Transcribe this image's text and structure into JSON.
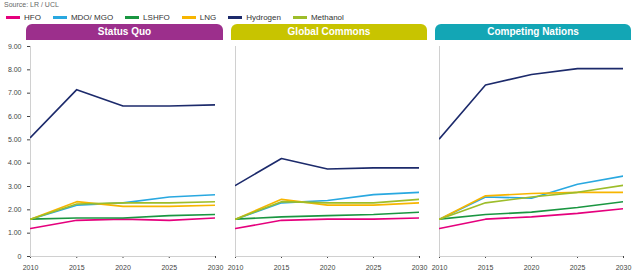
{
  "chart_data": [
    {
      "type": "line",
      "title": "Status Quo",
      "color": "#9c2f8c",
      "source": "Source: LR / UCL",
      "legend": "top",
      "x": [
        2010,
        2015,
        2020,
        2025,
        2030
      ],
      "xlim": [
        2010,
        2030
      ],
      "xticks": [
        2010,
        2015,
        2020,
        2025,
        2030
      ],
      "ylim": [
        0,
        9
      ],
      "yticks": [
        0,
        {
          "value": 1,
          "label": "1.00"
        },
        {
          "value": 2,
          "label": "2.00"
        },
        {
          "value": 3,
          "label": "3.00"
        },
        {
          "value": 4,
          "label": "4.00"
        },
        {
          "value": 5,
          "label": "5.00"
        },
        {
          "value": 6,
          "label": "6.00"
        },
        {
          "value": 7,
          "label": "7.00"
        },
        {
          "value": 8,
          "label": "8.00"
        },
        {
          "value": 9,
          "label": "9.00"
        }
      ],
      "grid": false,
      "series": [
        {
          "name": "HFO",
          "color": "#e5007d",
          "values": [
            1.2,
            1.55,
            1.6,
            1.55,
            1.65
          ]
        },
        {
          "name": "MDO/ MGO",
          "color": "#29a8e0",
          "values": [
            1.6,
            2.2,
            2.3,
            2.55,
            2.65
          ]
        },
        {
          "name": "LSHFO",
          "color": "#1a9641",
          "values": [
            1.6,
            1.65,
            1.65,
            1.75,
            1.8
          ]
        },
        {
          "name": "LNG",
          "color": "#f7b500",
          "values": [
            1.6,
            2.35,
            2.15,
            2.15,
            2.2
          ]
        },
        {
          "name": "Hydrogen",
          "color": "#1c2a6b",
          "values": [
            5.1,
            7.15,
            6.45,
            6.45,
            6.5
          ]
        },
        {
          "name": "Methanol",
          "color": "#9dbd2a",
          "values": [
            1.6,
            2.25,
            2.3,
            2.3,
            2.35
          ]
        }
      ]
    },
    {
      "type": "line",
      "title": "Global Commons",
      "color": "#c8c400",
      "tick_labels": "x",
      "x": [
        2010,
        2015,
        2020,
        2025,
        2030
      ],
      "xlim": [
        2010,
        2030
      ],
      "xticks": [
        2010,
        2015,
        2020,
        2025,
        2030
      ],
      "ylim": [
        0,
        9
      ],
      "yticks": [
        0,
        1,
        2,
        3,
        4,
        5,
        6,
        7,
        8,
        9
      ],
      "grid": false,
      "series": [
        {
          "name": "HFO",
          "color": "#e5007d",
          "values": [
            1.2,
            1.55,
            1.6,
            1.6,
            1.65
          ]
        },
        {
          "name": "MDO/ MGO",
          "color": "#29a8e0",
          "values": [
            1.6,
            2.3,
            2.4,
            2.65,
            2.75
          ]
        },
        {
          "name": "LSHFO",
          "color": "#1a9641",
          "values": [
            1.6,
            1.7,
            1.75,
            1.8,
            1.9
          ]
        },
        {
          "name": "LNG",
          "color": "#f7b500",
          "values": [
            1.6,
            2.45,
            2.2,
            2.2,
            2.3
          ]
        },
        {
          "name": "Hydrogen",
          "color": "#1c2a6b",
          "values": [
            3.05,
            4.2,
            3.75,
            3.8,
            3.8
          ]
        },
        {
          "name": "Methanol",
          "color": "#9dbd2a",
          "values": [
            1.6,
            2.35,
            2.3,
            2.3,
            2.45
          ]
        }
      ]
    },
    {
      "type": "line",
      "title": "Competing Nations",
      "color": "#13a6b5",
      "tick_labels": "x",
      "x": [
        2010,
        2015,
        2020,
        2025,
        2030
      ],
      "xlim": [
        2010,
        2030
      ],
      "xticks": [
        2010,
        2015,
        2020,
        2025,
        2030
      ],
      "ylim": [
        0,
        9
      ],
      "yticks": [
        0,
        1,
        2,
        3,
        4,
        5,
        6,
        7,
        8,
        9
      ],
      "grid": false,
      "series": [
        {
          "name": "HFO",
          "color": "#e5007d",
          "values": [
            1.2,
            1.6,
            1.7,
            1.85,
            2.05
          ]
        },
        {
          "name": "MDO/ MGO",
          "color": "#29a8e0",
          "values": [
            1.6,
            2.55,
            2.5,
            3.1,
            3.45
          ]
        },
        {
          "name": "LSHFO",
          "color": "#1a9641",
          "values": [
            1.6,
            1.8,
            1.9,
            2.1,
            2.35
          ]
        },
        {
          "name": "LNG",
          "color": "#f7b500",
          "values": [
            1.6,
            2.6,
            2.7,
            2.75,
            2.75
          ]
        },
        {
          "name": "Hydrogen",
          "color": "#1c2a6b",
          "values": [
            5.05,
            7.35,
            7.8,
            8.05,
            8.05
          ]
        },
        {
          "name": "Methanol",
          "color": "#9dbd2a",
          "values": [
            1.6,
            2.3,
            2.55,
            2.75,
            3.05
          ]
        }
      ]
    }
  ]
}
